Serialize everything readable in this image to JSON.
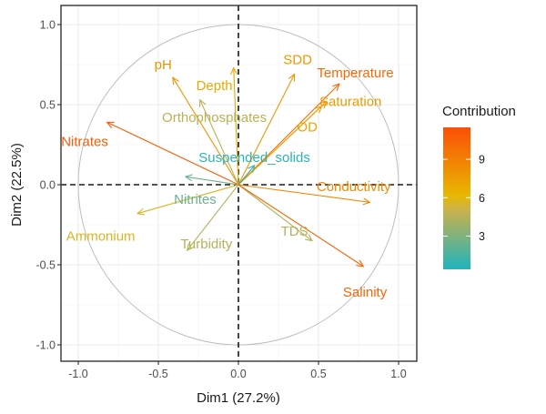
{
  "chart_data": {
    "type": "scatter",
    "subtype": "pca-variable-correlation-circle",
    "title": "",
    "xlabel": "Dim1 (27.2%)",
    "ylabel": "Dim2 (22.5%)",
    "xlim": [
      -1.1,
      1.1
    ],
    "ylim": [
      -1.1,
      1.1
    ],
    "x_ticks": [
      -1.0,
      -0.5,
      0.0,
      0.5,
      1.0
    ],
    "x_tick_labels": [
      "-1.0",
      "-0.5",
      "0.0",
      "0.5",
      "1.0"
    ],
    "y_ticks": [
      -1.0,
      -0.5,
      0.0,
      0.5,
      1.0
    ],
    "y_tick_labels": [
      "-1.0",
      "-0.5",
      "0.0",
      "0.5",
      "1.0"
    ],
    "grid": true,
    "unit_circle": true,
    "reference_lines": {
      "x": 0,
      "y": 0,
      "style": "dashed"
    },
    "legend": {
      "title": "Contribution",
      "placement": "right",
      "type": "gradient",
      "range": [
        0.4,
        11.5
      ],
      "ticks": [
        3,
        6,
        9
      ],
      "tick_labels": [
        "3",
        "6",
        "9"
      ],
      "colors": [
        "#00AFBB",
        "#E7B800",
        "#FC4E07"
      ]
    },
    "variables": [
      {
        "name": "pH",
        "x": -0.41,
        "y": 0.67,
        "contrib": 8.0
      },
      {
        "name": "Depth",
        "x": -0.03,
        "y": 0.73,
        "contrib": 7.0
      },
      {
        "name": "SDD",
        "x": 0.35,
        "y": 0.69,
        "contrib": 7.8
      },
      {
        "name": "Temperature",
        "x": 0.63,
        "y": 0.63,
        "contrib": 10.2
      },
      {
        "name": "Saturation",
        "x": 0.55,
        "y": 0.52,
        "contrib": 7.6
      },
      {
        "name": "OD",
        "x": 0.52,
        "y": 0.49,
        "contrib": 7.2
      },
      {
        "name": "Orthophosphates",
        "x": -0.24,
        "y": 0.53,
        "contrib": 4.6
      },
      {
        "name": "Nitrates",
        "x": -0.82,
        "y": 0.39,
        "contrib": 10.8
      },
      {
        "name": "Suspended_solids",
        "x": 0.1,
        "y": 0.12,
        "contrib": 0.8
      },
      {
        "name": "Nitrites",
        "x": -0.33,
        "y": 0.05,
        "contrib": 2.5
      },
      {
        "name": "Conductivity",
        "x": 0.82,
        "y": -0.11,
        "contrib": 8.6
      },
      {
        "name": "Ammonium",
        "x": -0.63,
        "y": -0.18,
        "contrib": 5.6
      },
      {
        "name": "Turbidity",
        "x": -0.32,
        "y": -0.41,
        "contrib": 4.4
      },
      {
        "name": "TDS",
        "x": 0.46,
        "y": -0.35,
        "contrib": 4.4
      },
      {
        "name": "Salinity",
        "x": 0.78,
        "y": -0.51,
        "contrib": 10.4
      }
    ]
  }
}
